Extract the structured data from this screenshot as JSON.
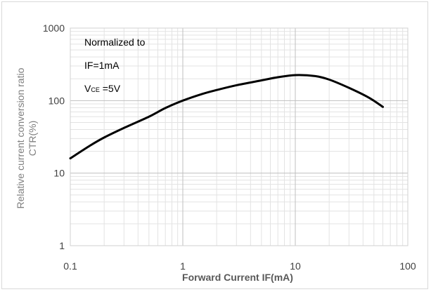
{
  "chart_data": {
    "type": "line",
    "scale": "log-log",
    "xlabel": "Forward Current IF(mA)",
    "ylabel": [
      "Relative current conversion ratio",
      "CTR(%)"
    ],
    "xlim": [
      0.1,
      100
    ],
    "ylim": [
      1,
      1000
    ],
    "x_ticks": [
      "0.1",
      "1",
      "10",
      "100"
    ],
    "y_ticks": [
      "1",
      "10",
      "100",
      "1000"
    ],
    "grid": true,
    "annotation": {
      "line1": "Normalized to",
      "line2": "IF=1mA",
      "line3_main": "V",
      "line3_sub": "CE",
      "line3_rest": " =5V"
    },
    "series": [
      {
        "x": [
          0.1,
          0.15,
          0.2,
          0.3,
          0.5,
          0.7,
          1,
          1.5,
          2,
          3,
          5,
          7,
          10,
          15,
          20,
          30,
          45,
          60
        ],
        "y": [
          16,
          24,
          31,
          42,
          60,
          79,
          100,
          124,
          140,
          163,
          190,
          210,
          225,
          218,
          195,
          150,
          110,
          82
        ]
      }
    ],
    "colors": {
      "line": "#000000",
      "grid_major": "#bfbfbf",
      "grid_minor": "#e3e3e3"
    }
  }
}
